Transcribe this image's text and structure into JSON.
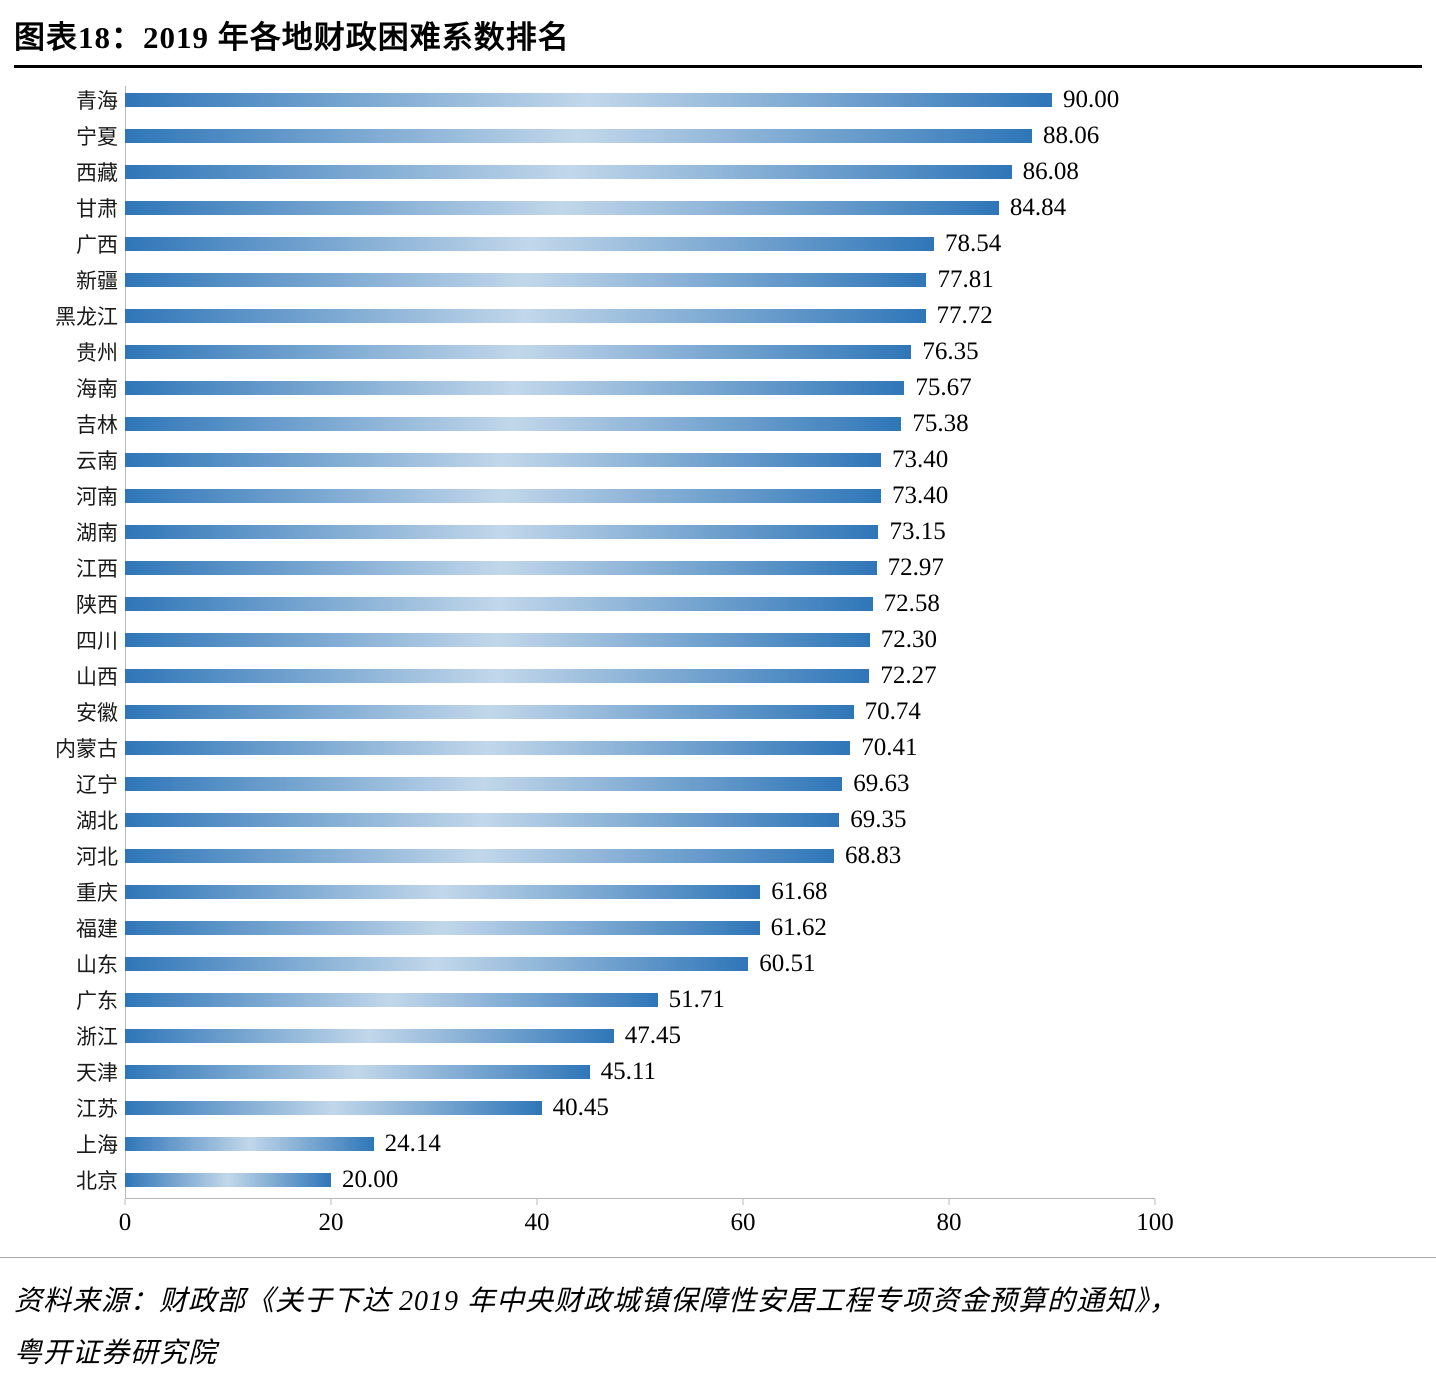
{
  "title": "图表18：2019 年各地财政困难系数排名",
  "source": {
    "line1": "资料来源：财政部《关于下达 2019 年中央财政城镇保障性安居工程专项资金预算的通知》，",
    "line2": "粤开证券研究院"
  },
  "chart_data": {
    "type": "bar",
    "orientation": "horizontal",
    "title": "2019 年各地财政困难系数排名",
    "categories": [
      "青海",
      "宁夏",
      "西藏",
      "甘肃",
      "广西",
      "新疆",
      "黑龙江",
      "贵州",
      "海南",
      "吉林",
      "云南",
      "河南",
      "湖南",
      "江西",
      "陕西",
      "四川",
      "山西",
      "安徽",
      "内蒙古",
      "辽宁",
      "湖北",
      "河北",
      "重庆",
      "福建",
      "山东",
      "广东",
      "浙江",
      "天津",
      "江苏",
      "上海",
      "北京"
    ],
    "values": [
      90.0,
      88.06,
      86.08,
      84.84,
      78.54,
      77.81,
      77.72,
      76.35,
      75.67,
      75.38,
      73.4,
      73.4,
      73.15,
      72.97,
      72.58,
      72.3,
      72.27,
      70.74,
      70.41,
      69.63,
      69.35,
      68.83,
      61.68,
      61.62,
      60.51,
      51.71,
      47.45,
      45.11,
      40.45,
      24.14,
      20.0
    ],
    "xlim": [
      0,
      100
    ],
    "xticks": [
      0,
      20,
      40,
      60,
      80,
      100
    ],
    "bar_color_edge": "#2f76b8",
    "bar_color_mid": "#c2d7ea",
    "grid": false,
    "legend": false,
    "value_labels": true
  }
}
